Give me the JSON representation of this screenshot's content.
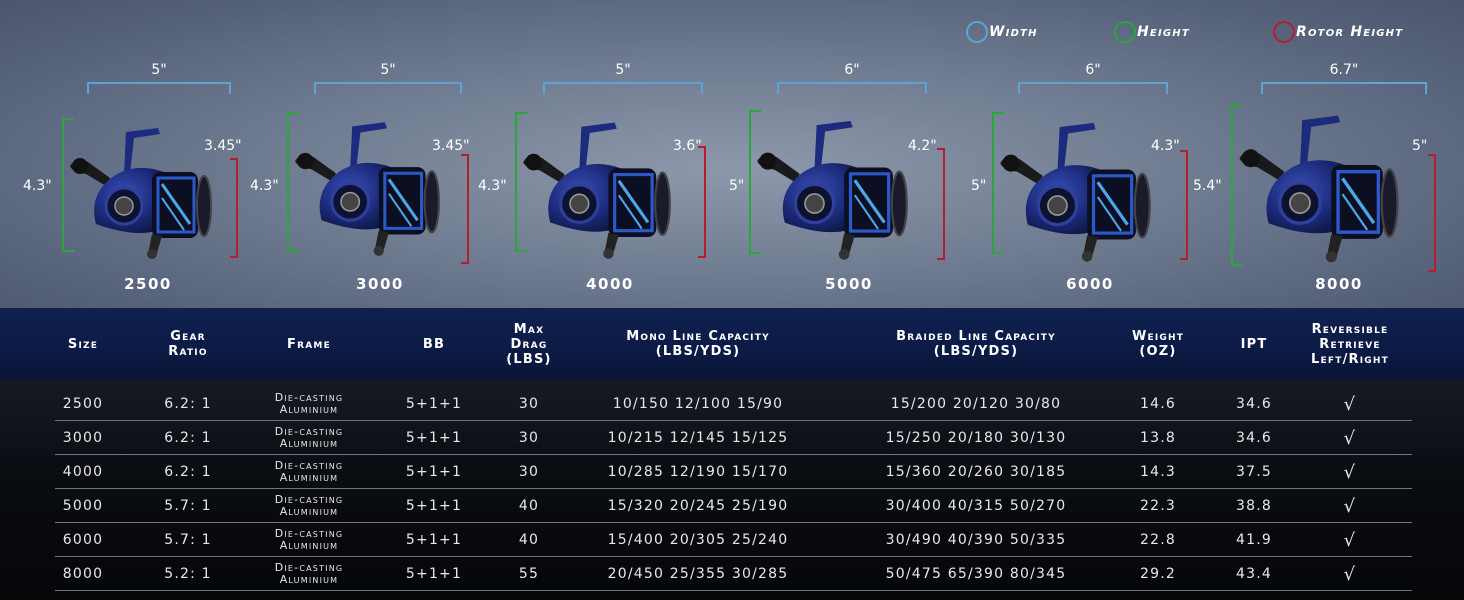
{
  "legend": [
    {
      "label": "Width",
      "color": "#5fa3d6"
    },
    {
      "label": "Height",
      "color": "#2aa63a"
    },
    {
      "label": "Rotor Height",
      "color": "#b3202a"
    }
  ],
  "reels": [
    {
      "model": "2500",
      "width": "5\"",
      "height": "4.3\"",
      "rotor_height": "3.45\""
    },
    {
      "model": "3000",
      "width": "5\"",
      "height": "4.3\"",
      "rotor_height": "3.45\""
    },
    {
      "model": "4000",
      "width": "5\"",
      "height": "4.3\"",
      "rotor_height": "3.6\""
    },
    {
      "model": "5000",
      "width": "6\"",
      "height": "5\"",
      "rotor_height": "4.2\""
    },
    {
      "model": "6000",
      "width": "6\"",
      "height": "5\"",
      "rotor_height": "4.3\""
    },
    {
      "model": "8000",
      "width": "6.7\"",
      "height": "5.4\"",
      "rotor_height": "5\""
    }
  ],
  "table": {
    "headers": [
      "Size",
      "Gear\nRatio",
      "Frame",
      "BB",
      "Max\nDrag\n(LBS)",
      "Mono Line Capacity\n(LBS/YDS)",
      "Braided Line Capacity\n(LBS/YDS)",
      "Weight\n(OZ)",
      "IPT",
      "Reversible\nRetrieve\nLeft/Right"
    ],
    "rows": [
      [
        "2500",
        "6.2: 1",
        "Die-casting\nAluminium",
        "5+1+1",
        "30",
        "10/150 12/100 15/90",
        "15/200 20/120 30/80",
        "14.6",
        "34.6",
        "√"
      ],
      [
        "3000",
        "6.2: 1",
        "Die-casting\nAluminium",
        "5+1+1",
        "30",
        "10/215 12/145 15/125",
        "15/250 20/180 30/130",
        "13.8",
        "34.6",
        "√"
      ],
      [
        "4000",
        "6.2: 1",
        "Die-casting\nAluminium",
        "5+1+1",
        "30",
        "10/285 12/190 15/170",
        "15/360 20/260 30/185",
        "14.3",
        "37.5",
        "√"
      ],
      [
        "5000",
        "5.7: 1",
        "Die-casting\nAluminium",
        "5+1+1",
        "40",
        "15/320 20/245 25/190",
        "30/400 40/315 50/270",
        "22.3",
        "38.8",
        "√"
      ],
      [
        "6000",
        "5.7: 1",
        "Die-casting\nAluminium",
        "5+1+1",
        "40",
        "15/400 20/305 25/240",
        "30/490 40/390 50/335",
        "22.8",
        "41.9",
        "√"
      ],
      [
        "8000",
        "5.2: 1",
        "Die-casting\nAluminium",
        "5+1+1",
        "55",
        "20/450 25/355 30/285",
        "50/475 65/390 80/345",
        "29.2",
        "43.4",
        "√"
      ]
    ]
  }
}
